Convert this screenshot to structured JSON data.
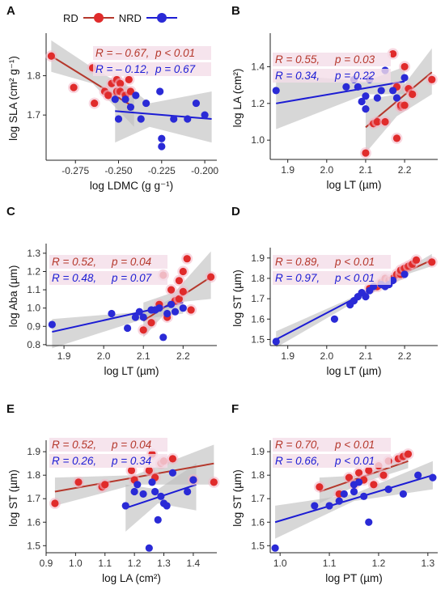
{
  "colors": {
    "rd": "#b5382c",
    "nrd": "#1c1cd4",
    "rd_point": "#e02b2b",
    "nrd_point": "#2a2ad6",
    "band": "#bdbdbd",
    "stat_bg": "#f4dde8"
  },
  "legend": {
    "items": [
      {
        "label": "RD",
        "color": "#b5382c"
      },
      {
        "label": "NRD",
        "color": "#1c1cd4"
      }
    ]
  },
  "chart_data": [
    {
      "panel": "A",
      "type": "scatter",
      "xlabel": "log LDMC (g g⁻¹)",
      "ylabel": "log SLA (cm² g⁻¹)",
      "xlim": [
        -0.292,
        -0.193
      ],
      "ylim": [
        1.585,
        1.9
      ],
      "xticks": [
        -0.275,
        -0.25,
        -0.225,
        -0.2
      ],
      "xticklabels": [
        "-0.275",
        "-0.250",
        "-0.225",
        "-0.200"
      ],
      "yticks": [
        1.7,
        1.8
      ],
      "yticklabels": [
        "1.7",
        "1.8"
      ],
      "stats": [
        {
          "group": "RD",
          "R": "R = – 0.67,",
          "p": "p < 0.01"
        },
        {
          "group": "NRD",
          "R": "R = – 0.12,",
          "p": "p = 0.67"
        }
      ],
      "series": [
        {
          "name": "RD",
          "x": [
            -0.289,
            -0.276,
            -0.265,
            -0.264,
            -0.258,
            -0.256,
            -0.254,
            -0.251,
            -0.251,
            -0.249,
            -0.249,
            -0.246,
            -0.244,
            -0.243
          ],
          "y": [
            1.85,
            1.77,
            1.82,
            1.73,
            1.76,
            1.75,
            1.78,
            1.79,
            1.76,
            1.78,
            1.76,
            1.75,
            1.79,
            1.76
          ],
          "fit": [
            -0.289,
            1.85,
            -0.241,
            1.72
          ],
          "band": [
            [
              -0.289,
              1.89,
              1.81
            ],
            [
              -0.265,
              1.82,
              1.78
            ],
            [
              -0.241,
              1.76,
              1.67
            ]
          ]
        },
        {
          "name": "NRD",
          "x": [
            -0.252,
            -0.25,
            -0.246,
            -0.243,
            -0.24,
            -0.237,
            -0.234,
            -0.226,
            -0.225,
            -0.225,
            -0.218,
            -0.21,
            -0.205,
            -0.2
          ],
          "y": [
            1.74,
            1.69,
            1.74,
            1.72,
            1.75,
            1.69,
            1.73,
            1.76,
            1.64,
            1.62,
            1.69,
            1.69,
            1.73,
            1.7
          ],
          "fit": [
            -0.252,
            1.71,
            -0.196,
            1.69
          ],
          "band": [
            [
              -0.252,
              1.8,
              1.63
            ],
            [
              -0.232,
              1.73,
              1.67
            ],
            [
              -0.196,
              1.76,
              1.63
            ]
          ]
        }
      ]
    },
    {
      "panel": "B",
      "type": "scatter",
      "xlabel": "log LT (µm)",
      "ylabel": "log LA (cm²)",
      "xlim": [
        1.855,
        2.285
      ],
      "ylim": [
        0.895,
        1.565
      ],
      "xticks": [
        1.9,
        2.0,
        2.1,
        2.2
      ],
      "xticklabels": [
        "1.9",
        "2.0",
        "2.1",
        "2.2"
      ],
      "yticks": [
        1.0,
        1.2,
        1.4
      ],
      "yticklabels": [
        "1.0",
        "1.2",
        "1.4"
      ],
      "stats": [
        {
          "group": "RD",
          "R": "R = 0.55,",
          "p": "p = 0.03"
        },
        {
          "group": "NRD",
          "R": "R = 0.34,",
          "p": "p = 0.22"
        }
      ],
      "series": [
        {
          "name": "RD",
          "x": [
            2.1,
            2.12,
            2.13,
            2.15,
            2.17,
            2.18,
            2.18,
            2.19,
            2.19,
            2.2,
            2.2,
            2.21,
            2.22,
            2.27
          ],
          "y": [
            0.93,
            1.09,
            1.1,
            1.1,
            1.47,
            1.01,
            1.29,
            1.18,
            1.19,
            1.19,
            1.4,
            1.28,
            1.25,
            1.33
          ],
          "fit": [
            2.1,
            1.07,
            2.27,
            1.37
          ],
          "band": [
            [
              2.1,
              1.22,
              0.93
            ],
            [
              2.18,
              1.25,
              1.13
            ],
            [
              2.27,
              1.5,
              1.25
            ]
          ]
        },
        {
          "name": "NRD",
          "x": [
            1.87,
            2.05,
            2.07,
            2.08,
            2.09,
            2.1,
            2.1,
            2.11,
            2.13,
            2.14,
            2.15,
            2.17,
            2.18,
            2.2
          ],
          "y": [
            1.27,
            1.29,
            1.33,
            1.29,
            1.21,
            1.17,
            1.24,
            1.33,
            1.23,
            1.27,
            1.38,
            1.27,
            1.23,
            1.34
          ],
          "fit": [
            1.87,
            1.2,
            2.2,
            1.32
          ],
          "band": [
            [
              1.87,
              1.36,
              1.06
            ],
            [
              2.1,
              1.32,
              1.25
            ],
            [
              2.2,
              1.4,
              1.25
            ]
          ]
        }
      ]
    },
    {
      "panel": "C",
      "type": "scatter",
      "xlabel": "log LT (µm)",
      "ylabel": "log Aba (µm)",
      "xlim": [
        1.855,
        2.285
      ],
      "ylim": [
        0.795,
        1.335
      ],
      "xticks": [
        1.9,
        2.0,
        2.1,
        2.2
      ],
      "xticklabels": [
        "1.9",
        "2.0",
        "2.1",
        "2.2"
      ],
      "yticks": [
        0.8,
        0.9,
        1.0,
        1.1,
        1.2,
        1.3
      ],
      "yticklabels": [
        "0.8",
        "0.9",
        "1.0",
        "1.1",
        "1.2",
        "1.3"
      ],
      "stats": [
        {
          "group": "RD",
          "R": "R = 0.52,",
          "p": "p = 0.04"
        },
        {
          "group": "NRD",
          "R": "R = 0.48,",
          "p": "p = 0.07"
        }
      ],
      "series": [
        {
          "name": "RD",
          "x": [
            2.1,
            2.12,
            2.14,
            2.15,
            2.16,
            2.17,
            2.18,
            2.19,
            2.19,
            2.2,
            2.2,
            2.21,
            2.22,
            2.27
          ],
          "y": [
            0.88,
            0.92,
            1.02,
            1.18,
            0.95,
            1.1,
            1.04,
            1.05,
            1.15,
            1.09,
            1.2,
            1.27,
            0.99,
            1.17
          ],
          "fit": [
            2.1,
            0.93,
            2.27,
            1.17
          ],
          "band": [
            [
              2.1,
              1.03,
              0.84
            ],
            [
              2.18,
              1.09,
              1.03
            ],
            [
              2.27,
              1.31,
              1.05
            ]
          ]
        },
        {
          "name": "NRD",
          "x": [
            1.87,
            2.02,
            2.06,
            2.08,
            2.09,
            2.1,
            2.12,
            2.13,
            2.14,
            2.15,
            2.16,
            2.17,
            2.18,
            2.2
          ],
          "y": [
            0.91,
            0.97,
            0.89,
            0.95,
            0.98,
            0.95,
            0.99,
            0.99,
            1.0,
            0.84,
            0.97,
            1.02,
            0.98,
            1.0
          ],
          "fit": [
            1.87,
            0.87,
            2.2,
            1.03
          ],
          "band": [
            [
              1.87,
              0.94,
              0.78
            ],
            [
              2.1,
              0.98,
              0.94
            ],
            [
              2.2,
              1.08,
              0.97
            ]
          ]
        }
      ]
    },
    {
      "panel": "D",
      "type": "scatter",
      "xlabel": "log LT (µm)",
      "ylabel": "log ST (µm)",
      "xlim": [
        1.855,
        2.285
      ],
      "ylim": [
        1.47,
        1.935
      ],
      "xticks": [
        1.9,
        2.0,
        2.1,
        2.2
      ],
      "xticklabels": [
        "1.9",
        "2.0",
        "2.1",
        "2.2"
      ],
      "yticks": [
        1.5,
        1.6,
        1.7,
        1.8,
        1.9
      ],
      "yticklabels": [
        "1.5",
        "1.6",
        "1.7",
        "1.8",
        "1.9"
      ],
      "stats": [
        {
          "group": "RD",
          "R": "R = 0.89,",
          "p": "p  < 0.01"
        },
        {
          "group": "NRD",
          "R": "R = 0.97,",
          "p": "p  < 0.01"
        }
      ],
      "series": [
        {
          "name": "RD",
          "x": [
            2.11,
            2.13,
            2.14,
            2.15,
            2.16,
            2.17,
            2.18,
            2.19,
            2.19,
            2.2,
            2.21,
            2.22,
            2.23,
            2.27
          ],
          "y": [
            1.75,
            1.76,
            1.78,
            1.8,
            1.79,
            1.8,
            1.82,
            1.82,
            1.84,
            1.85,
            1.86,
            1.87,
            1.89,
            1.88
          ],
          "fit": [
            2.11,
            1.75,
            2.27,
            1.89
          ],
          "band": [
            [
              2.11,
              1.78,
              1.72
            ],
            [
              2.19,
              1.83,
              1.81
            ],
            [
              2.27,
              1.92,
              1.86
            ]
          ]
        },
        {
          "name": "NRD",
          "x": [
            1.87,
            2.02,
            2.06,
            2.07,
            2.08,
            2.09,
            2.1,
            2.11,
            2.12,
            2.14,
            2.15,
            2.16,
            2.17,
            2.2
          ],
          "y": [
            1.49,
            1.6,
            1.67,
            1.69,
            1.71,
            1.73,
            1.71,
            1.74,
            1.76,
            1.77,
            1.76,
            1.77,
            1.79,
            1.82
          ],
          "fit": [
            1.87,
            1.5,
            2.2,
            1.83
          ],
          "band": [
            [
              1.87,
              1.54,
              1.46
            ],
            [
              2.1,
              1.735,
              1.715
            ],
            [
              2.2,
              1.86,
              1.8
            ]
          ]
        }
      ]
    },
    {
      "panel": "E",
      "type": "scatter",
      "xlabel": "log LA (cm²)",
      "ylabel": "log ST (µm)",
      "xlim": [
        0.9,
        1.48
      ],
      "ylim": [
        1.47,
        1.935
      ],
      "xticks": [
        0.9,
        1.0,
        1.1,
        1.2,
        1.3,
        1.4
      ],
      "xticklabels": [
        "0.9",
        "1.0",
        "1.1",
        "1.2",
        "1.3",
        "1.4"
      ],
      "yticks": [
        1.5,
        1.6,
        1.7,
        1.8,
        1.9
      ],
      "yticklabels": [
        "1.5",
        "1.6",
        "1.7",
        "1.8",
        "1.9"
      ],
      "stats": [
        {
          "group": "RD",
          "R": "R = 0.52,",
          "p": "p = 0.04"
        },
        {
          "group": "NRD",
          "R": "R = 0.26,",
          "p": "p = 0.34"
        }
      ],
      "series": [
        {
          "name": "RD",
          "x": [
            0.93,
            1.01,
            1.09,
            1.1,
            1.19,
            1.2,
            1.25,
            1.26,
            1.27,
            1.29,
            1.3,
            1.33,
            1.4,
            1.47
          ],
          "y": [
            1.68,
            1.77,
            1.75,
            1.76,
            1.82,
            1.78,
            1.82,
            1.89,
            1.79,
            1.85,
            1.86,
            1.87,
            1.78,
            1.77
          ],
          "fit": [
            0.93,
            1.73,
            1.47,
            1.85
          ],
          "band": [
            [
              0.93,
              1.79,
              1.67
            ],
            [
              1.2,
              1.8,
              1.76
            ],
            [
              1.47,
              1.93,
              1.76
            ]
          ]
        },
        {
          "name": "NRD",
          "x": [
            1.17,
            1.2,
            1.21,
            1.23,
            1.25,
            1.26,
            1.27,
            1.28,
            1.29,
            1.3,
            1.31,
            1.33,
            1.38,
            1.4
          ],
          "y": [
            1.67,
            1.73,
            1.76,
            1.72,
            1.49,
            1.77,
            1.73,
            1.61,
            1.71,
            1.68,
            1.67,
            1.81,
            1.73,
            1.78
          ],
          "fit": [
            1.17,
            1.66,
            1.41,
            1.76
          ],
          "band": [
            [
              1.17,
              1.76,
              1.56
            ],
            [
              1.28,
              1.74,
              1.68
            ],
            [
              1.41,
              1.85,
              1.65
            ]
          ]
        }
      ]
    },
    {
      "panel": "F",
      "type": "scatter",
      "xlabel": "log PT (µm)",
      "ylabel": "log ST (µm)",
      "xlim": [
        0.98,
        1.32
      ],
      "ylim": [
        1.47,
        1.935
      ],
      "xticks": [
        1.0,
        1.1,
        1.2,
        1.3
      ],
      "xticklabels": [
        "1.0",
        "1.1",
        "1.2",
        "1.3"
      ],
      "yticks": [
        1.5,
        1.6,
        1.7,
        1.8,
        1.9
      ],
      "yticklabels": [
        "1.5",
        "1.6",
        "1.7",
        "1.8",
        "1.9"
      ],
      "stats": [
        {
          "group": "RD",
          "R": "R = 0.70,",
          "p": "p < 0.01"
        },
        {
          "group": "NRD",
          "R": "R = 0.66,",
          "p": "p < 0.01"
        }
      ],
      "series": [
        {
          "name": "RD",
          "x": [
            1.08,
            1.12,
            1.14,
            1.15,
            1.16,
            1.17,
            1.18,
            1.19,
            1.2,
            1.21,
            1.22,
            1.24,
            1.25,
            1.26
          ],
          "y": [
            1.75,
            1.72,
            1.79,
            1.76,
            1.81,
            1.78,
            1.82,
            1.76,
            1.84,
            1.8,
            1.86,
            1.87,
            1.88,
            1.89
          ],
          "fit": [
            1.08,
            1.73,
            1.26,
            1.86
          ],
          "band": [
            [
              1.08,
              1.79,
              1.68
            ],
            [
              1.17,
              1.8,
              1.77
            ],
            [
              1.26,
              1.9,
              1.83
            ]
          ]
        },
        {
          "name": "NRD",
          "x": [
            0.99,
            1.07,
            1.1,
            1.12,
            1.13,
            1.15,
            1.15,
            1.16,
            1.17,
            1.18,
            1.22,
            1.25,
            1.28,
            1.31
          ],
          "y": [
            1.49,
            1.67,
            1.67,
            1.69,
            1.72,
            1.76,
            1.73,
            1.77,
            1.71,
            1.6,
            1.74,
            1.72,
            1.8,
            1.79
          ],
          "fit": [
            0.99,
            1.6,
            1.31,
            1.8
          ],
          "band": [
            [
              0.99,
              1.67,
              1.53
            ],
            [
              1.15,
              1.72,
              1.69
            ],
            [
              1.31,
              1.86,
              1.74
            ]
          ]
        }
      ]
    }
  ]
}
